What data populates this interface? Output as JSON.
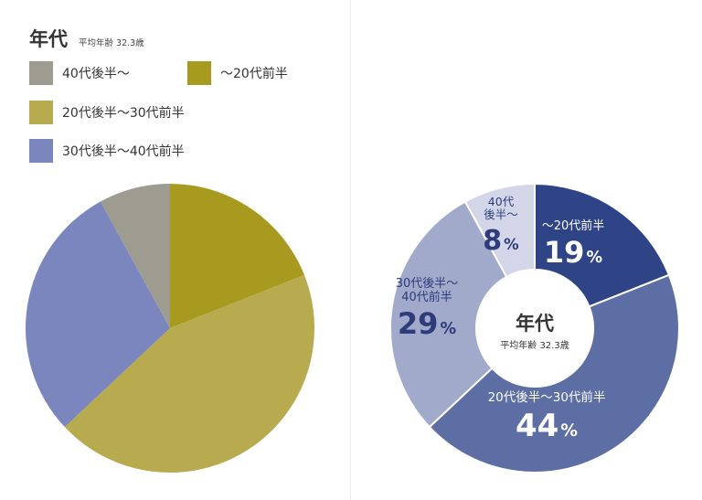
{
  "chart_data": [
    {
      "type": "pie",
      "title": "年代",
      "subtitle": "平均年齢 32.3歳",
      "legend": [
        {
          "label": "40代後半～",
          "color": "#9e9b90"
        },
        {
          "label": "～20代前半",
          "color": "#a89a1e"
        },
        {
          "label": "20代後半～30代前半",
          "color": "#b8aa4e"
        },
        {
          "label": "30代後半～40代前半",
          "color": "#7a86bd"
        }
      ],
      "slices": [
        {
          "name": "～20代前半",
          "value": 19,
          "color": "#a89a1e"
        },
        {
          "name": "20代後半～30代前半",
          "value": 44,
          "color": "#b8aa4e"
        },
        {
          "name": "30代後半～40代前半",
          "value": 29,
          "color": "#7a86bd"
        },
        {
          "name": "40代後半～",
          "value": 8,
          "color": "#9e9b90"
        }
      ],
      "start_angle_deg": 0,
      "direction": "clockwise"
    },
    {
      "type": "pie",
      "variant": "donut",
      "center_title": "年代",
      "center_subtitle": "平均年齢 32.3歳",
      "slices": [
        {
          "name": "～20代前半",
          "name_lines": [
            "～20代前半"
          ],
          "value": 19,
          "display": "19",
          "unit": "%",
          "color": "#2f4487",
          "text": "light"
        },
        {
          "name": "20代後半～30代前半",
          "name_lines": [
            "20代後半～30代前半"
          ],
          "value": 44,
          "display": "44",
          "unit": "%",
          "color": "#5d6ea5",
          "text": "light"
        },
        {
          "name": "30代後半～40代前半",
          "name_lines": [
            "30代後半～",
            "40代前半"
          ],
          "value": 29,
          "display": "29",
          "unit": "%",
          "color": "#a1aacb",
          "text": "dark"
        },
        {
          "name": "40代後半～",
          "name_lines": [
            "40代",
            "後半～"
          ],
          "value": 8,
          "display": "8",
          "unit": "%",
          "color": "#d2d6e8",
          "text": "dark"
        }
      ],
      "start_angle_deg": 0,
      "direction": "clockwise"
    }
  ]
}
